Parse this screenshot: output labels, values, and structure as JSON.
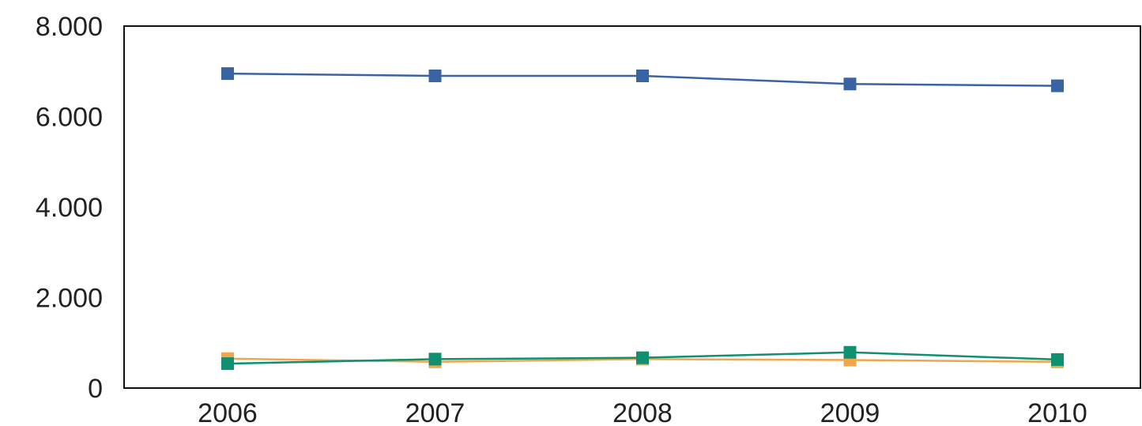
{
  "chart_data": {
    "type": "line",
    "title": "",
    "xlabel": "",
    "ylabel": "",
    "categories": [
      "2006",
      "2007",
      "2008",
      "2009",
      "2010"
    ],
    "ylim": [
      0,
      8000
    ],
    "y_ticks": [
      0,
      2000,
      4000,
      6000,
      8000
    ],
    "y_tick_labels": [
      "0",
      "2.000",
      "4.000",
      "6.000",
      "8.000"
    ],
    "grid": false,
    "legend": "none",
    "series": [
      {
        "color": "#3a63a4",
        "values": [
          6950,
          6900,
          6900,
          6720,
          6680
        ]
      },
      {
        "color": "#f0a64a",
        "values": [
          650,
          580,
          640,
          620,
          580
        ]
      },
      {
        "color": "#0f9070",
        "values": [
          540,
          640,
          670,
          790,
          630
        ]
      }
    ]
  }
}
